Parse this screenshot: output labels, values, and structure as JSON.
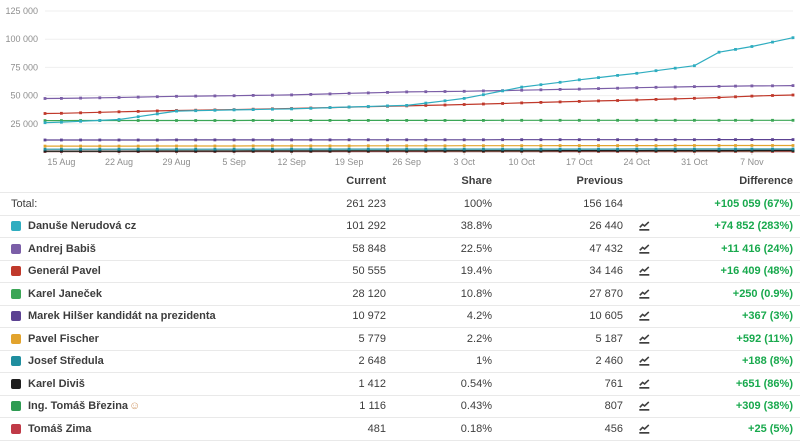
{
  "chart_data": {
    "type": "line",
    "title": "",
    "xlabel": "",
    "ylabel": "",
    "ylim": [
      0,
      132000
    ],
    "grid": "horizontal",
    "legend_position": "table-below",
    "y_ticks": [
      25000,
      50000,
      75000,
      100000,
      125000
    ],
    "y_tick_labels": [
      "25 000",
      "50 000",
      "75 000",
      "100 000",
      "125 000"
    ],
    "x_day_range": [
      0,
      91
    ],
    "x_days": [
      0,
      2,
      9,
      16,
      23,
      30,
      37,
      44,
      51,
      58,
      65,
      72,
      79,
      82,
      86,
      91
    ],
    "x_tick_days": [
      2,
      9,
      16,
      23,
      30,
      37,
      44,
      51,
      58,
      65,
      72,
      79,
      86
    ],
    "x_tick_labels": [
      "15 Aug",
      "22 Aug",
      "29 Aug",
      "5 Sep",
      "12 Sep",
      "19 Sep",
      "26 Sep",
      "3 Oct",
      "10 Oct",
      "17 Oct",
      "24 Oct",
      "31 Oct",
      "7 Nov"
    ],
    "series": [
      {
        "name": "Danuše Nerudová cz",
        "color": "#2FADC0",
        "values": [
          26000,
          26440,
          28800,
          36300,
          37300,
          38200,
          39900,
          41300,
          47500,
          57500,
          64000,
          69800,
          76500,
          88500,
          93500,
          101292
        ]
      },
      {
        "name": "Andrej Babiš",
        "color": "#7B5EA7",
        "values": [
          47400,
          47500,
          48300,
          49400,
          49900,
          50600,
          52000,
          53300,
          53800,
          54800,
          55800,
          57000,
          58000,
          58200,
          58600,
          58848
        ]
      },
      {
        "name": "Generál Pavel",
        "color": "#C0392B",
        "values": [
          34146,
          34300,
          35600,
          36800,
          37600,
          38600,
          39800,
          40900,
          42100,
          43500,
          44900,
          46100,
          47600,
          48300,
          49600,
          50555
        ]
      },
      {
        "name": "Karel Janeček",
        "color": "#3BA656",
        "values": [
          27870,
          27880,
          27910,
          27940,
          27960,
          27990,
          28010,
          28030,
          28050,
          28065,
          28080,
          28090,
          28100,
          28105,
          28112,
          28120
        ]
      },
      {
        "name": "Marek Hilšer kandidát na prezidenta",
        "color": "#5C4292",
        "values": [
          10605,
          10615,
          10650,
          10690,
          10720,
          10750,
          10780,
          10810,
          10840,
          10870,
          10895,
          10920,
          10940,
          10950,
          10962,
          10972
        ]
      },
      {
        "name": "Pavel Fischer",
        "color": "#E2A32D",
        "values": [
          5187,
          5200,
          5250,
          5300,
          5350,
          5400,
          5450,
          5500,
          5550,
          5600,
          5650,
          5700,
          5740,
          5755,
          5770,
          5779
        ]
      },
      {
        "name": "Josef Středula",
        "color": "#1F8E9F",
        "values": [
          2460,
          2465,
          2480,
          2498,
          2515,
          2532,
          2548,
          2563,
          2578,
          2592,
          2605,
          2618,
          2630,
          2636,
          2643,
          2648
        ]
      },
      {
        "name": "Karel Diviš",
        "color": "#1E1E1E",
        "values": [
          761,
          775,
          825,
          875,
          925,
          975,
          1025,
          1075,
          1125,
          1175,
          1225,
          1280,
          1330,
          1355,
          1390,
          1412
        ]
      },
      {
        "name": "Ing. Tomáš Březina",
        "color": "#2E9B52",
        "values": [
          807,
          813,
          838,
          862,
          886,
          910,
          934,
          958,
          982,
          1006,
          1030,
          1055,
          1080,
          1090,
          1105,
          1116
        ]
      },
      {
        "name": "Tomáš Zima",
        "color": "#C03A47",
        "values": [
          456,
          457,
          459,
          461,
          463,
          465,
          467,
          469,
          471,
          473,
          475,
          477,
          478,
          479,
          480,
          481
        ]
      }
    ]
  },
  "table": {
    "headers": {
      "current": "Current",
      "share": "Share",
      "previous": "Previous",
      "difference": "Difference"
    },
    "total": {
      "label": "Total:",
      "current": "261 223",
      "share": "100%",
      "previous": "156 164",
      "difference": "+105 059 (67%)"
    },
    "rows": [
      {
        "name": "Danuše Nerudová cz",
        "emoji": "",
        "color": "#2FADC0",
        "current": "101 292",
        "share": "38.8%",
        "previous": "26 440",
        "difference": "+74 852 (283%)"
      },
      {
        "name": "Andrej Babiš",
        "emoji": "",
        "color": "#7B5EA7",
        "current": "58 848",
        "share": "22.5%",
        "previous": "47 432",
        "difference": "+11 416 (24%)"
      },
      {
        "name": "Generál Pavel",
        "emoji": "",
        "color": "#C0392B",
        "current": "50 555",
        "share": "19.4%",
        "previous": "34 146",
        "difference": "+16 409 (48%)"
      },
      {
        "name": "Karel Janeček",
        "emoji": "",
        "color": "#3BA656",
        "current": "28 120",
        "share": "10.8%",
        "previous": "27 870",
        "difference": "+250 (0.9%)"
      },
      {
        "name": "Marek Hilšer kandidát na prezidenta",
        "emoji": "",
        "color": "#5C4292",
        "current": "10 972",
        "share": "4.2%",
        "previous": "10 605",
        "difference": "+367 (3%)"
      },
      {
        "name": "Pavel Fischer",
        "emoji": "",
        "color": "#E2A32D",
        "current": "5 779",
        "share": "2.2%",
        "previous": "5 187",
        "difference": "+592 (11%)"
      },
      {
        "name": "Josef Středula",
        "emoji": "",
        "color": "#1F8E9F",
        "current": "2 648",
        "share": "1%",
        "previous": "2 460",
        "difference": "+188 (8%)"
      },
      {
        "name": "Karel Diviš",
        "emoji": "",
        "color": "#1E1E1E",
        "current": "1 412",
        "share": "0.54%",
        "previous": "761",
        "difference": "+651 (86%)"
      },
      {
        "name": "Ing. Tomáš Březina",
        "emoji": "☺",
        "color": "#2E9B52",
        "current": "1 116",
        "share": "0.43%",
        "previous": "807",
        "difference": "+309 (38%)"
      },
      {
        "name": "Tomáš Zima",
        "emoji": "",
        "color": "#C03A47",
        "current": "481",
        "share": "0.18%",
        "previous": "456",
        "difference": "+25 (5%)"
      }
    ]
  },
  "colors": {
    "positive": "#18a94d",
    "grid": "#efefef",
    "axis": "#cfcfcf",
    "axis_text": "#8e8e8e",
    "text": "#3d3d3d",
    "row_border": "#e9e9e9"
  }
}
